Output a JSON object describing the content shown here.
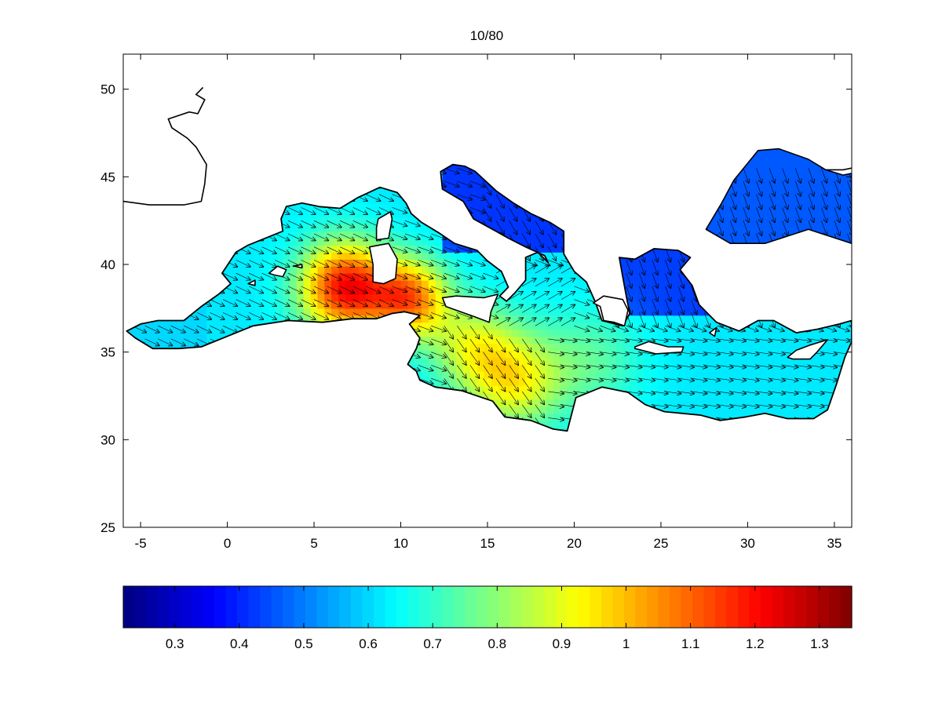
{
  "title": "10/80",
  "map": {
    "xlim": [
      -6,
      36
    ],
    "ylim": [
      25,
      52
    ],
    "xticks": [
      -5,
      0,
      5,
      10,
      15,
      20,
      25,
      30,
      35
    ],
    "yticks": [
      25,
      30,
      35,
      40,
      45,
      50
    ],
    "xtick_labels": [
      "-5",
      "0",
      "5",
      "10",
      "15",
      "20",
      "25",
      "30",
      "35"
    ],
    "ytick_labels": [
      "25",
      "30",
      "35",
      "40",
      "45",
      "50"
    ],
    "background": "#ffffff",
    "coast_color": "#000000",
    "arrow_color": "#000000"
  },
  "colorbar": {
    "range": [
      0.22,
      1.35
    ],
    "ticks": [
      0.3,
      0.4,
      0.5,
      0.6,
      0.7,
      0.8,
      0.9,
      1,
      1.1,
      1.2,
      1.3
    ],
    "tick_labels": [
      "0.3",
      "0.4",
      "0.5",
      "0.6",
      "0.7",
      "0.8",
      "0.9",
      "1",
      "1.1",
      "1.2",
      "1.3"
    ],
    "colormap": "jet"
  }
}
